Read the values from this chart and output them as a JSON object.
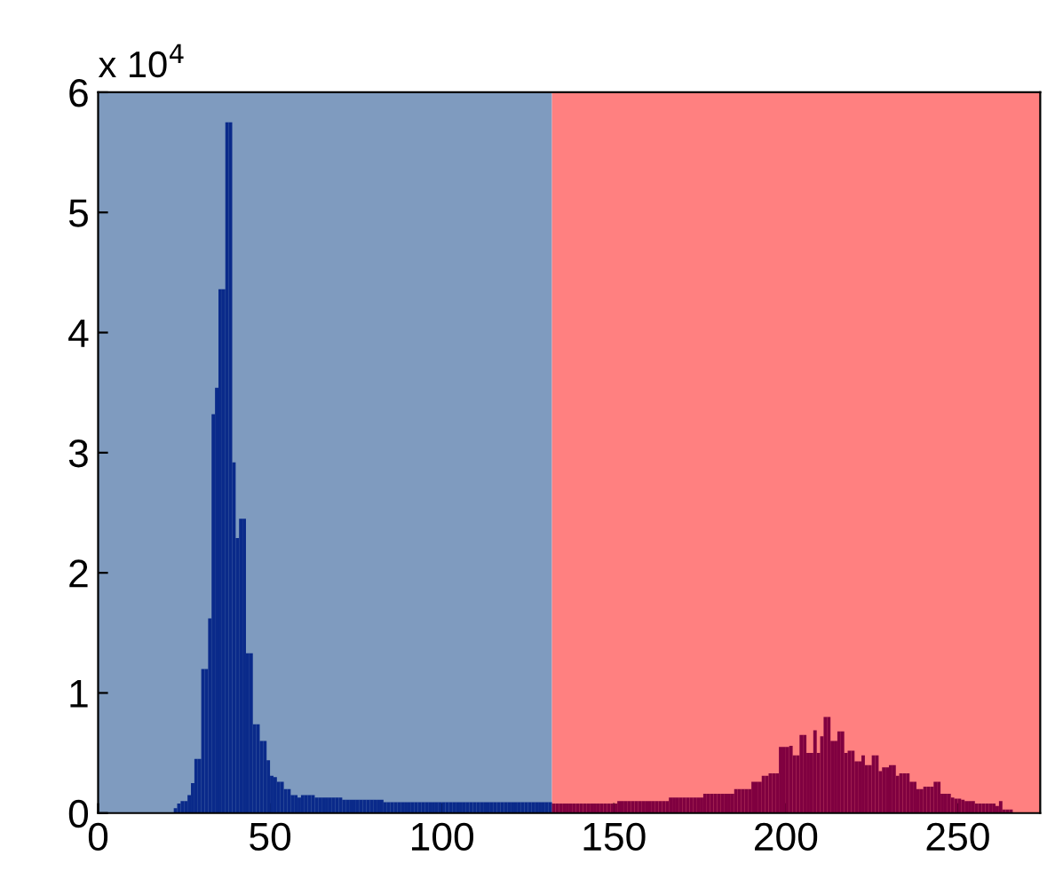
{
  "chart_data": {
    "type": "histogram",
    "xlim": [
      0,
      274
    ],
    "xticks": [
      0,
      50,
      100,
      150,
      200,
      250
    ],
    "ylim": [
      0,
      6
    ],
    "yticks": [
      0,
      1,
      2,
      3,
      4,
      5,
      6
    ],
    "grid": false,
    "annotations": [
      "x 10$^{4}$"
    ],
    "bands": [
      {
        "axis": "x",
        "from": 0,
        "to": 132,
        "color": "#7f9bbf"
      },
      {
        "axis": "x",
        "from": 132,
        "to": 274,
        "color": "#ff8080"
      }
    ],
    "bins": [
      22,
      23,
      24,
      25,
      26,
      27,
      28,
      29,
      30,
      31,
      32,
      33,
      34,
      35,
      36,
      37,
      38,
      39,
      40,
      41,
      42,
      43,
      44,
      45,
      46,
      47,
      48,
      49,
      50,
      51,
      52,
      53,
      54,
      55,
      56,
      57,
      58,
      59,
      60,
      61,
      62,
      63,
      64,
      65,
      66,
      67,
      68,
      69,
      70,
      71,
      72,
      73,
      74,
      75,
      76,
      77,
      78,
      79,
      80,
      81,
      82,
      83,
      84,
      85,
      86,
      87,
      88,
      89,
      90,
      91,
      92,
      93,
      94,
      95,
      96,
      97,
      98,
      99,
      100,
      101,
      102,
      103,
      104,
      105,
      106,
      107,
      108,
      109,
      110,
      111,
      112,
      113,
      114,
      115,
      116,
      117,
      118,
      119,
      120,
      121,
      122,
      123,
      124,
      125,
      126,
      127,
      128,
      129,
      130,
      131,
      132,
      133,
      134,
      135,
      136,
      137,
      138,
      139,
      140,
      141,
      142,
      143,
      144,
      145,
      146,
      147,
      148,
      149,
      150,
      151,
      152,
      153,
      154,
      155,
      156,
      157,
      158,
      159,
      160,
      161,
      162,
      163,
      164,
      165,
      166,
      167,
      168,
      169,
      170,
      171,
      172,
      173,
      174,
      175,
      176,
      177,
      178,
      179,
      180,
      181,
      182,
      183,
      184,
      185,
      186,
      187,
      188,
      189,
      190,
      191,
      192,
      193,
      194,
      195,
      196,
      197,
      198,
      199,
      200,
      201,
      202,
      203,
      204,
      205,
      206,
      207,
      208,
      209,
      210,
      211,
      212,
      213,
      214,
      215,
      216,
      217,
      218,
      219,
      220,
      221,
      222,
      223,
      224,
      225,
      226,
      227,
      228,
      229,
      230,
      231,
      232,
      233,
      234,
      235,
      236,
      237,
      238,
      239,
      240,
      241,
      242,
      243,
      244,
      245,
      246,
      247,
      248,
      249,
      250,
      251,
      252,
      253,
      254,
      255,
      256,
      257,
      258,
      259,
      260,
      261,
      262,
      263,
      264,
      265,
      266
    ],
    "values": [
      0.04,
      0.08,
      0.1,
      0.1,
      0.15,
      0.25,
      0.45,
      0.45,
      1.2,
      1.2,
      1.62,
      3.32,
      3.54,
      4.36,
      4.36,
      5.75,
      5.75,
      2.92,
      2.29,
      2.45,
      2.45,
      1.33,
      1.33,
      0.74,
      0.74,
      0.6,
      0.6,
      0.44,
      0.31,
      0.3,
      0.26,
      0.26,
      0.2,
      0.2,
      0.15,
      0.15,
      0.13,
      0.15,
      0.15,
      0.15,
      0.15,
      0.13,
      0.13,
      0.13,
      0.13,
      0.13,
      0.13,
      0.13,
      0.13,
      0.11,
      0.11,
      0.11,
      0.11,
      0.11,
      0.11,
      0.11,
      0.11,
      0.11,
      0.11,
      0.11,
      0.11,
      0.09,
      0.09,
      0.09,
      0.09,
      0.09,
      0.09,
      0.09,
      0.09,
      0.09,
      0.09,
      0.09,
      0.09,
      0.09,
      0.09,
      0.09,
      0.09,
      0.09,
      0.09,
      0.09,
      0.09,
      0.09,
      0.09,
      0.09,
      0.09,
      0.09,
      0.09,
      0.09,
      0.09,
      0.09,
      0.09,
      0.09,
      0.09,
      0.09,
      0.09,
      0.09,
      0.09,
      0.09,
      0.09,
      0.09,
      0.09,
      0.09,
      0.09,
      0.09,
      0.09,
      0.09,
      0.09,
      0.09,
      0.09,
      0.09,
      0.08,
      0.08,
      0.08,
      0.08,
      0.08,
      0.08,
      0.08,
      0.08,
      0.08,
      0.08,
      0.08,
      0.08,
      0.08,
      0.08,
      0.08,
      0.08,
      0.08,
      0.08,
      0.08,
      0.1,
      0.1,
      0.1,
      0.1,
      0.1,
      0.1,
      0.1,
      0.1,
      0.1,
      0.1,
      0.1,
      0.1,
      0.1,
      0.1,
      0.1,
      0.13,
      0.13,
      0.13,
      0.13,
      0.13,
      0.13,
      0.13,
      0.13,
      0.13,
      0.13,
      0.16,
      0.16,
      0.16,
      0.16,
      0.16,
      0.16,
      0.16,
      0.16,
      0.16,
      0.2,
      0.2,
      0.2,
      0.2,
      0.2,
      0.26,
      0.26,
      0.26,
      0.31,
      0.31,
      0.33,
      0.33,
      0.33,
      0.55,
      0.55,
      0.55,
      0.56,
      0.48,
      0.48,
      0.65,
      0.65,
      0.5,
      0.5,
      0.69,
      0.5,
      0.64,
      0.8,
      0.8,
      0.6,
      0.6,
      0.68,
      0.68,
      0.5,
      0.52,
      0.52,
      0.43,
      0.43,
      0.48,
      0.4,
      0.4,
      0.48,
      0.48,
      0.35,
      0.38,
      0.38,
      0.4,
      0.4,
      0.31,
      0.33,
      0.33,
      0.33,
      0.26,
      0.26,
      0.2,
      0.2,
      0.22,
      0.22,
      0.22,
      0.26,
      0.26,
      0.16,
      0.16,
      0.16,
      0.13,
      0.12,
      0.12,
      0.11,
      0.1,
      0.1,
      0.1,
      0.08,
      0.08,
      0.08,
      0.08,
      0.08,
      0.08,
      0.06,
      0.1,
      0.03,
      0.03,
      0.03
    ],
    "colors": [
      "#0a2a8a",
      "#0a2a8a",
      "#0a2a8a",
      "#0a2a8a",
      "#0a2a8a",
      "#0a2a8a",
      "#0a2a8a",
      "#0a2a8a",
      "#0a2a8a",
      "#0a2a8a",
      "#0a2a8a",
      "#0a2a8a",
      "#0a2a8a",
      "#0a2a8a",
      "#0a2a8a",
      "#0a2a8a",
      "#0a2a8a",
      "#0a2a8a",
      "#0a2a8a",
      "#0a2a8a",
      "#0a2a8a",
      "#0a2a8a",
      "#0a2a8a",
      "#0a2a8a",
      "#0a2a8a",
      "#0a2a8a",
      "#0a2a8a",
      "#0a2a8a",
      "#0a2a8a",
      "#0a2a8a",
      "#0a2a8a",
      "#0a2a8a",
      "#0a2a8a",
      "#0a2a8a",
      "#0a2a8a",
      "#0a2a8a",
      "#0a2a8a",
      "#0a2a8a",
      "#0a2a8a",
      "#0a2a8a",
      "#0a2a8a",
      "#0a2a8a",
      "#0a2a8a",
      "#0a2a8a",
      "#0a2a8a",
      "#0a2a8a",
      "#0a2a8a",
      "#0a2a8a",
      "#0a2a8a",
      "#0a2a8a",
      "#0a2a8a",
      "#0a2a8a",
      "#0a2a8a",
      "#0a2a8a",
      "#0a2a8a",
      "#0a2a8a",
      "#0a2a8a",
      "#0a2a8a",
      "#0a2a8a",
      "#0a2a8a",
      "#0a2a8a",
      "#0a2a8a",
      "#0a2a8a",
      "#0a2a8a",
      "#0a2a8a",
      "#0a2a8a",
      "#0a2a8a",
      "#0a2a8a",
      "#0a2a8a",
      "#0a2a8a",
      "#0a2a8a",
      "#0a2a8a",
      "#0a2a8a",
      "#0a2a8a",
      "#0a2a8a",
      "#0a2a8a",
      "#0a2a8a",
      "#0a2a8a",
      "#0a2a8a",
      "#0a2a8a",
      "#0a2a8a",
      "#0a2a8a",
      "#0a2a8a",
      "#0a2a8a",
      "#0a2a8a",
      "#0a2a8a",
      "#0a2a8a",
      "#0a2a8a",
      "#0a2a8a",
      "#0a2a8a",
      "#0a2a8a",
      "#0a2a8a",
      "#0a2a8a",
      "#0a2a8a",
      "#0a2a8a",
      "#0a2a8a",
      "#0a2a8a",
      "#0a2a8a",
      "#0a2a8a",
      "#0a2a8a",
      "#0a2a8a",
      "#0a2a8a",
      "#0a2a8a",
      "#0a2a8a",
      "#0a2a8a",
      "#0a2a8a",
      "#0a2a8a",
      "#0a2a8a",
      "#0a2a8a",
      "#0a2a8a",
      "#800040",
      "#800040",
      "#800040",
      "#800040",
      "#800040",
      "#800040",
      "#800040",
      "#800040",
      "#800040",
      "#800040",
      "#800040",
      "#800040",
      "#800040",
      "#800040",
      "#800040",
      "#800040",
      "#800040",
      "#800040",
      "#800040",
      "#800040",
      "#800040",
      "#800040",
      "#800040",
      "#800040",
      "#800040",
      "#800040",
      "#800040",
      "#800040",
      "#800040",
      "#800040",
      "#800040",
      "#800040",
      "#800040",
      "#800040",
      "#800040",
      "#800040",
      "#800040",
      "#800040",
      "#800040",
      "#800040",
      "#800040",
      "#800040",
      "#800040",
      "#800040",
      "#800040",
      "#800040",
      "#800040",
      "#800040",
      "#800040",
      "#800040",
      "#800040",
      "#800040",
      "#800040",
      "#800040",
      "#800040",
      "#800040",
      "#800040",
      "#800040",
      "#800040",
      "#800040",
      "#800040",
      "#800040",
      "#800040",
      "#800040",
      "#800040",
      "#800040",
      "#800040",
      "#800040",
      "#800040",
      "#800040",
      "#800040",
      "#800040",
      "#800040",
      "#800040",
      "#800040",
      "#800040",
      "#800040",
      "#800040",
      "#800040",
      "#800040",
      "#800040",
      "#800040",
      "#800040",
      "#800040",
      "#800040",
      "#800040",
      "#800040",
      "#800040",
      "#800040",
      "#800040",
      "#800040",
      "#800040",
      "#800040",
      "#800040",
      "#800040",
      "#800040",
      "#800040",
      "#800040",
      "#800040",
      "#800040",
      "#800040",
      "#800040",
      "#800040",
      "#800040",
      "#800040",
      "#800040",
      "#800040",
      "#800040",
      "#800040",
      "#800040",
      "#800040",
      "#800040",
      "#800040",
      "#800040",
      "#800040",
      "#800040",
      "#800040",
      "#800040",
      "#800040",
      "#800040",
      "#800040",
      "#800040",
      "#800040",
      "#800040",
      "#800040",
      "#800040",
      "#800040",
      "#800040",
      "#800040",
      "#800040",
      "#800040",
      "#800040",
      "#800040",
      "#800040"
    ]
  }
}
